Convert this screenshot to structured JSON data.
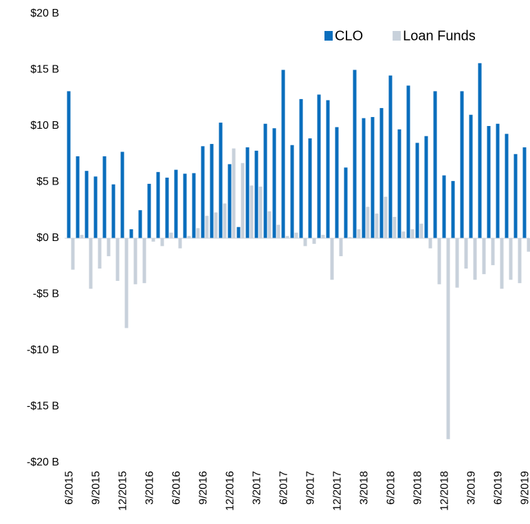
{
  "chart_data": {
    "type": "bar",
    "categories": [
      "6/2015",
      null,
      null,
      "9/2015",
      null,
      null,
      "12/2015",
      null,
      null,
      "3/2016",
      null,
      null,
      "6/2016",
      null,
      null,
      "9/2016",
      null,
      null,
      "12/2016",
      null,
      null,
      "3/2017",
      null,
      null,
      "6/2017",
      null,
      null,
      "9/2017",
      null,
      null,
      "12/2017",
      null,
      null,
      "3/2018",
      null,
      null,
      "6/2018",
      null,
      null,
      "9/2018",
      null,
      null,
      "12/2018",
      null,
      null,
      "3/2019",
      null,
      null,
      "6/2019",
      null,
      null,
      "9/2019"
    ],
    "series": [
      {
        "name": "CLO",
        "color": "#0a6ebd",
        "values": [
          13.1,
          7.3,
          6.0,
          5.5,
          7.3,
          4.8,
          7.7,
          0.8,
          2.5,
          4.85,
          5.9,
          5.4,
          6.1,
          5.75,
          5.8,
          8.2,
          8.4,
          10.3,
          6.6,
          1.0,
          8.1,
          7.8,
          10.2,
          9.8,
          15.0,
          8.3,
          12.4,
          8.9,
          12.8,
          12.3,
          9.9,
          6.3,
          15.0,
          10.7,
          10.8,
          11.6,
          14.5,
          9.7,
          13.6,
          8.5,
          9.1,
          13.1,
          5.6,
          5.1,
          13.1,
          11.0,
          15.6,
          10.0,
          10.2,
          9.3,
          7.5,
          8.1
        ]
      },
      {
        "name": "Loan Funds",
        "color": "#c8d1db",
        "values": [
          -2.8,
          0.3,
          -4.5,
          -2.7,
          -1.6,
          -3.8,
          -8.0,
          -4.1,
          -4.0,
          -0.3,
          -0.7,
          0.5,
          -0.9,
          0.2,
          0.9,
          2.0,
          2.3,
          3.1,
          8.0,
          6.7,
          4.7,
          4.6,
          2.4,
          1.2,
          0.2,
          0.5,
          -0.7,
          -0.5,
          0.3,
          -3.7,
          -1.6,
          0.1,
          0.8,
          2.8,
          2.2,
          3.7,
          1.9,
          0.6,
          0.8,
          1.3,
          -0.9,
          -4.1,
          -17.9,
          -4.4,
          -2.7,
          -3.7,
          -3.2,
          -2.4,
          -4.5,
          -3.7,
          -4.0,
          -1.2
        ]
      }
    ],
    "ylim": [
      -20,
      20
    ],
    "yticks": [
      {
        "value": -20,
        "label": "-$20 B"
      },
      {
        "value": -15,
        "label": "-$15 B"
      },
      {
        "value": -10,
        "label": "-$10 B"
      },
      {
        "value": -5,
        "label": "-$5 B"
      },
      {
        "value": 0,
        "label": "$0 B"
      },
      {
        "value": 5,
        "label": "$5 B"
      },
      {
        "value": 10,
        "label": "$10 B"
      },
      {
        "value": 15,
        "label": "$15 B"
      },
      {
        "value": 20,
        "label": "$20 B"
      }
    ],
    "grid": false,
    "legend": "upper right"
  }
}
